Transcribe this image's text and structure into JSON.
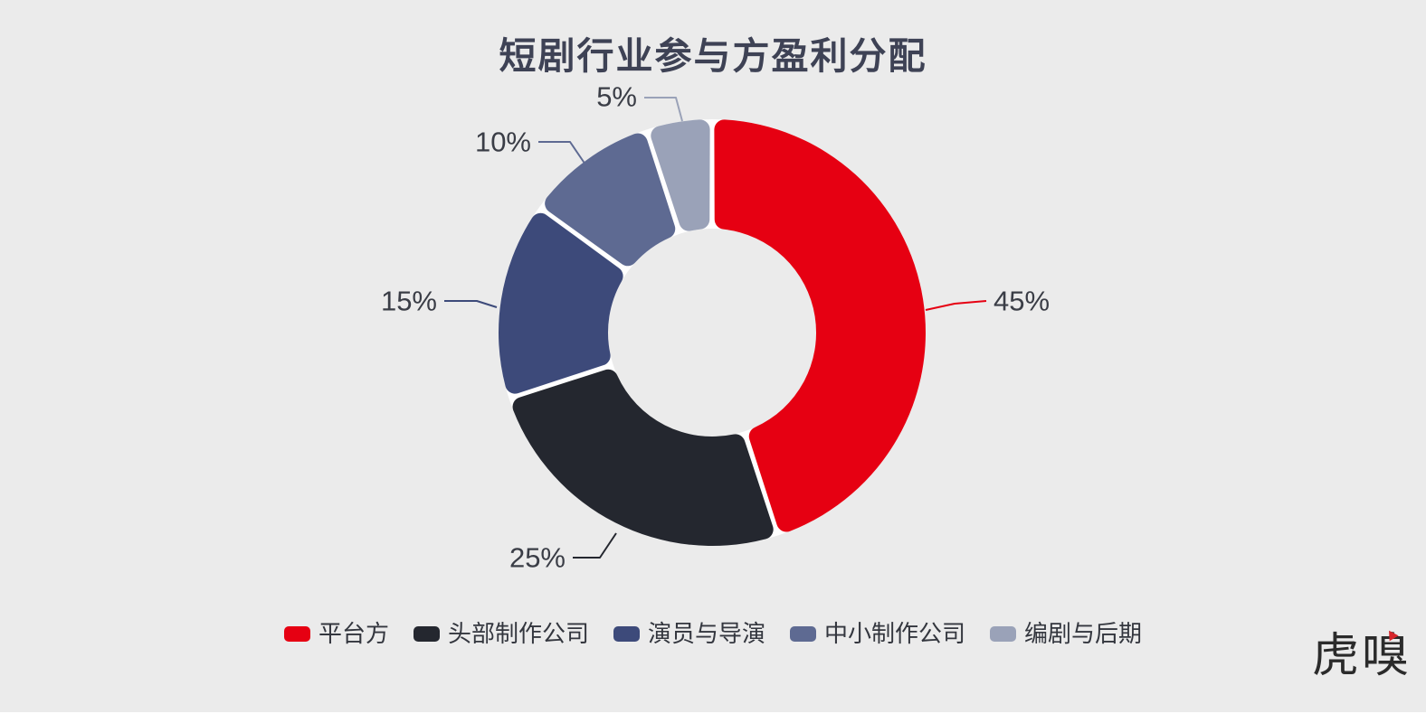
{
  "page": {
    "background": "#ebebeb",
    "slice_gap_color": "#ffffff",
    "title_color": "#3e4255",
    "value_label_color": "#3a3d46",
    "legend_text_color": "#33363e",
    "footer_strip_color": "#ffffff"
  },
  "chart_data": {
    "type": "pie",
    "subtype": "donut",
    "title": "短剧行业参与方盈利分配",
    "unit": "%",
    "start_angle_deg": 0,
    "direction": "clockwise",
    "inner_radius_ratio": 0.49,
    "rounded_corners": true,
    "legend_position": "bottom",
    "slices": [
      {
        "label": "平台方",
        "value": 45,
        "display": "45%",
        "color": "#e60012"
      },
      {
        "label": "头部制作公司",
        "value": 25,
        "display": "25%",
        "color": "#24272f"
      },
      {
        "label": "演员与导演",
        "value": 15,
        "display": "15%",
        "color": "#3d4a7a"
      },
      {
        "label": "中小制作公司",
        "value": 10,
        "display": "10%",
        "color": "#5e6a92"
      },
      {
        "label": "编剧与后期",
        "value": 5,
        "display": "5%",
        "color": "#9aa2b8"
      }
    ]
  },
  "watermark": {
    "text": "虎嗅",
    "accent_color": "#d6252b"
  }
}
